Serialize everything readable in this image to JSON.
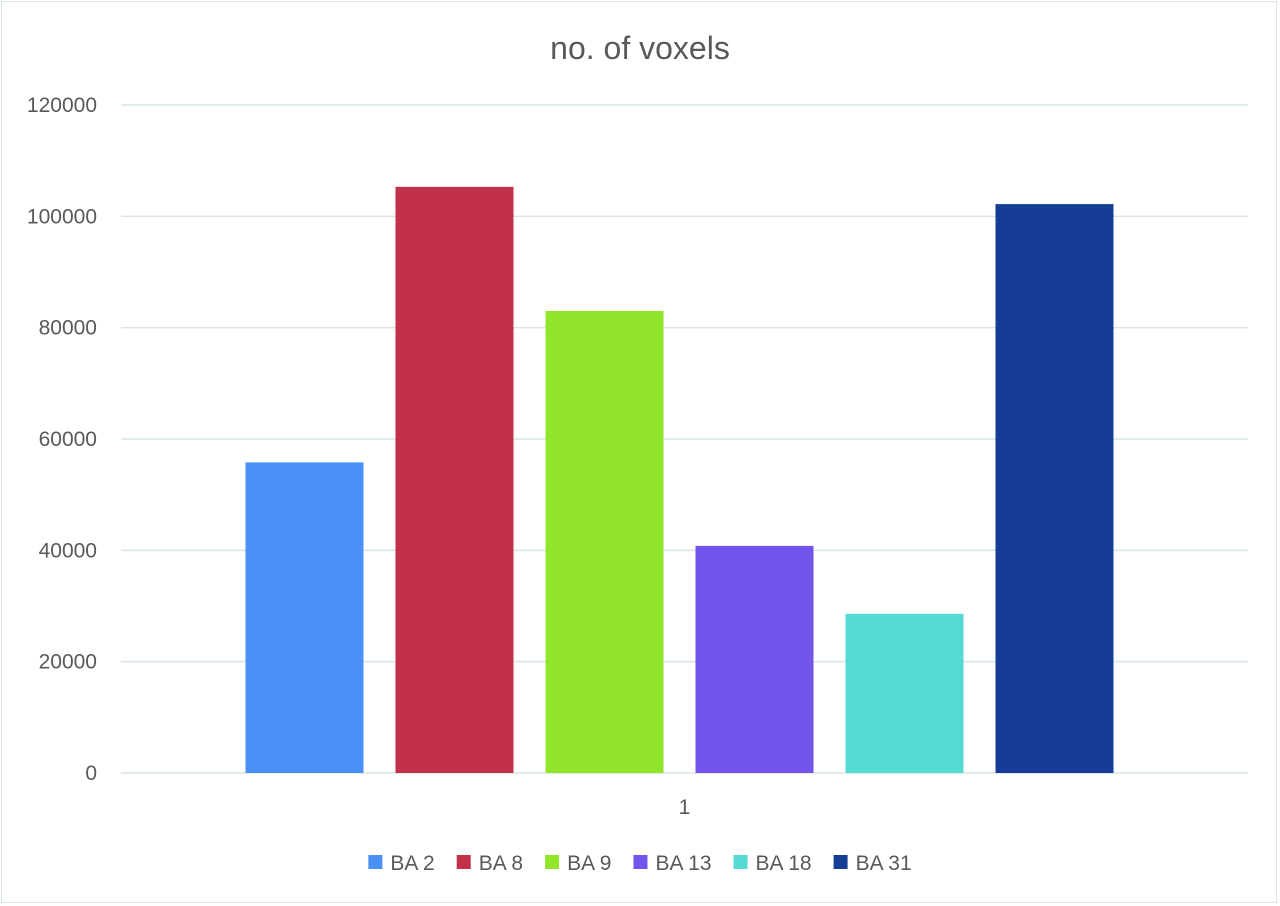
{
  "chart_data": {
    "type": "bar",
    "title": "no. of voxels",
    "categories": [
      "1"
    ],
    "series": [
      {
        "name": "BA 2",
        "values": [
          55800
        ],
        "color": "#4a90f7"
      },
      {
        "name": "BA 8",
        "values": [
          105300
        ],
        "color": "#c3304a"
      },
      {
        "name": "BA 9",
        "values": [
          83000
        ],
        "color": "#91e52a"
      },
      {
        "name": "BA 13",
        "values": [
          40800
        ],
        "color": "#7355eb"
      },
      {
        "name": "BA 18",
        "values": [
          28600
        ],
        "color": "#55d9d3"
      },
      {
        "name": "BA 31",
        "values": [
          102200
        ],
        "color": "#163d95"
      }
    ],
    "ylim": [
      0,
      120000
    ],
    "yticks": [
      "0",
      "20000",
      "40000",
      "60000",
      "80000",
      "100000",
      "120000"
    ],
    "xlabel": "",
    "ylabel": "",
    "grid": true,
    "legend": "bottom"
  }
}
